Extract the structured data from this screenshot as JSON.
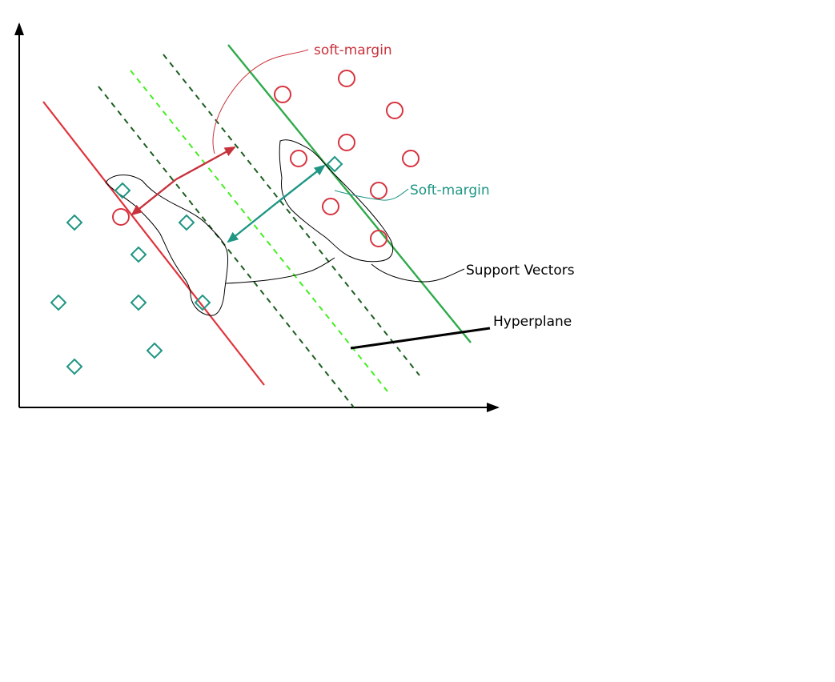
{
  "labels": {
    "soft_margin_red": "soft-margin",
    "soft_margin_teal": "Soft-margin",
    "support_vectors": "Support Vectors",
    "hyperplane": "Hyperplane"
  },
  "classes": {
    "circle": {
      "shape": "circle",
      "color": "#d7343f"
    },
    "diamond": {
      "shape": "diamond",
      "color": "#1f9684"
    }
  },
  "colors": {
    "red_margin_line": "#e0333a",
    "green_margin_line": "#2eaa4a",
    "dark_dashed_line": "#1b5e20",
    "light_dashed_line": "#44ee22",
    "red_arrow": "#c8323c",
    "teal_arrow": "#1f9684",
    "annotation_line": "#000000",
    "axis": "#000000"
  }
}
